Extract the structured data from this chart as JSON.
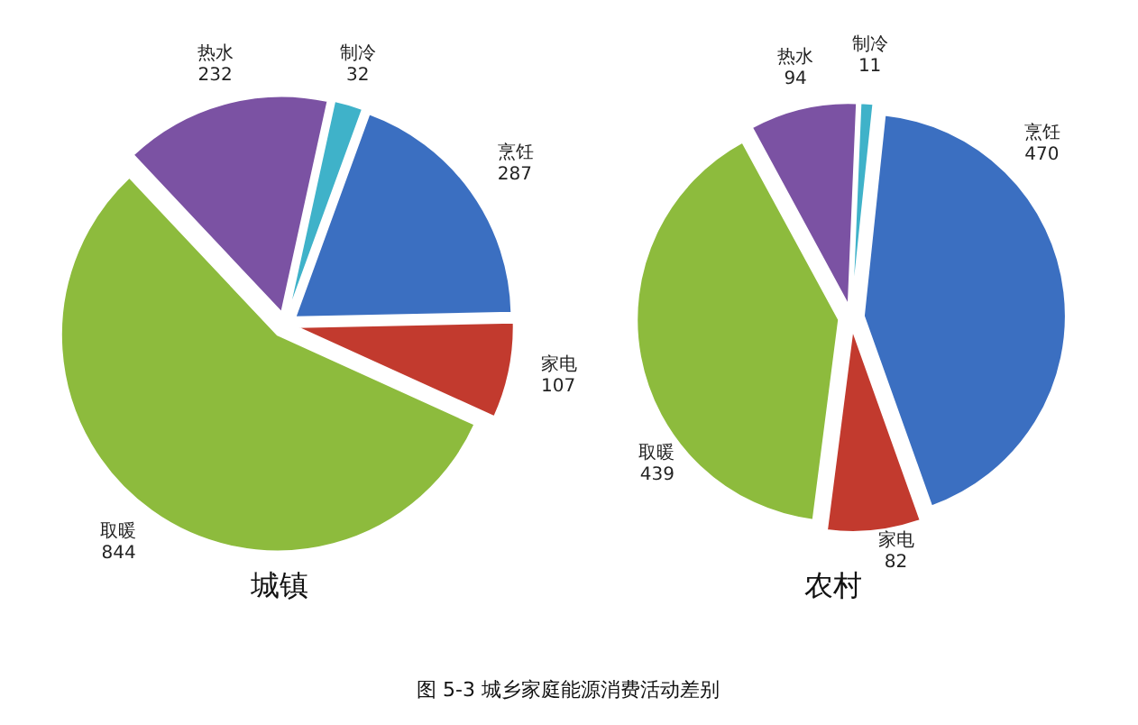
{
  "chart_data": [
    {
      "type": "pie",
      "title": "城镇",
      "categories": [
        "烹饪",
        "家电",
        "取暖",
        "热水",
        "制冷"
      ],
      "values": [
        287,
        107,
        844,
        232,
        32
      ],
      "colors": [
        "#3b6fc1",
        "#c23a2e",
        "#8dbb3d",
        "#7b52a3",
        "#3fb2c9"
      ],
      "data_labels": true,
      "annotations": [
        "图 5-3 城乡家庭能源消费活动差别"
      ]
    },
    {
      "type": "pie",
      "title": "农村",
      "categories": [
        "烹饪",
        "家电",
        "取暖",
        "热水",
        "制冷"
      ],
      "values": [
        470,
        82,
        439,
        94,
        11
      ],
      "colors": [
        "#3b6fc1",
        "#c23a2e",
        "#8dbb3d",
        "#7b52a3",
        "#3fb2c9"
      ],
      "data_labels": true
    }
  ]
}
